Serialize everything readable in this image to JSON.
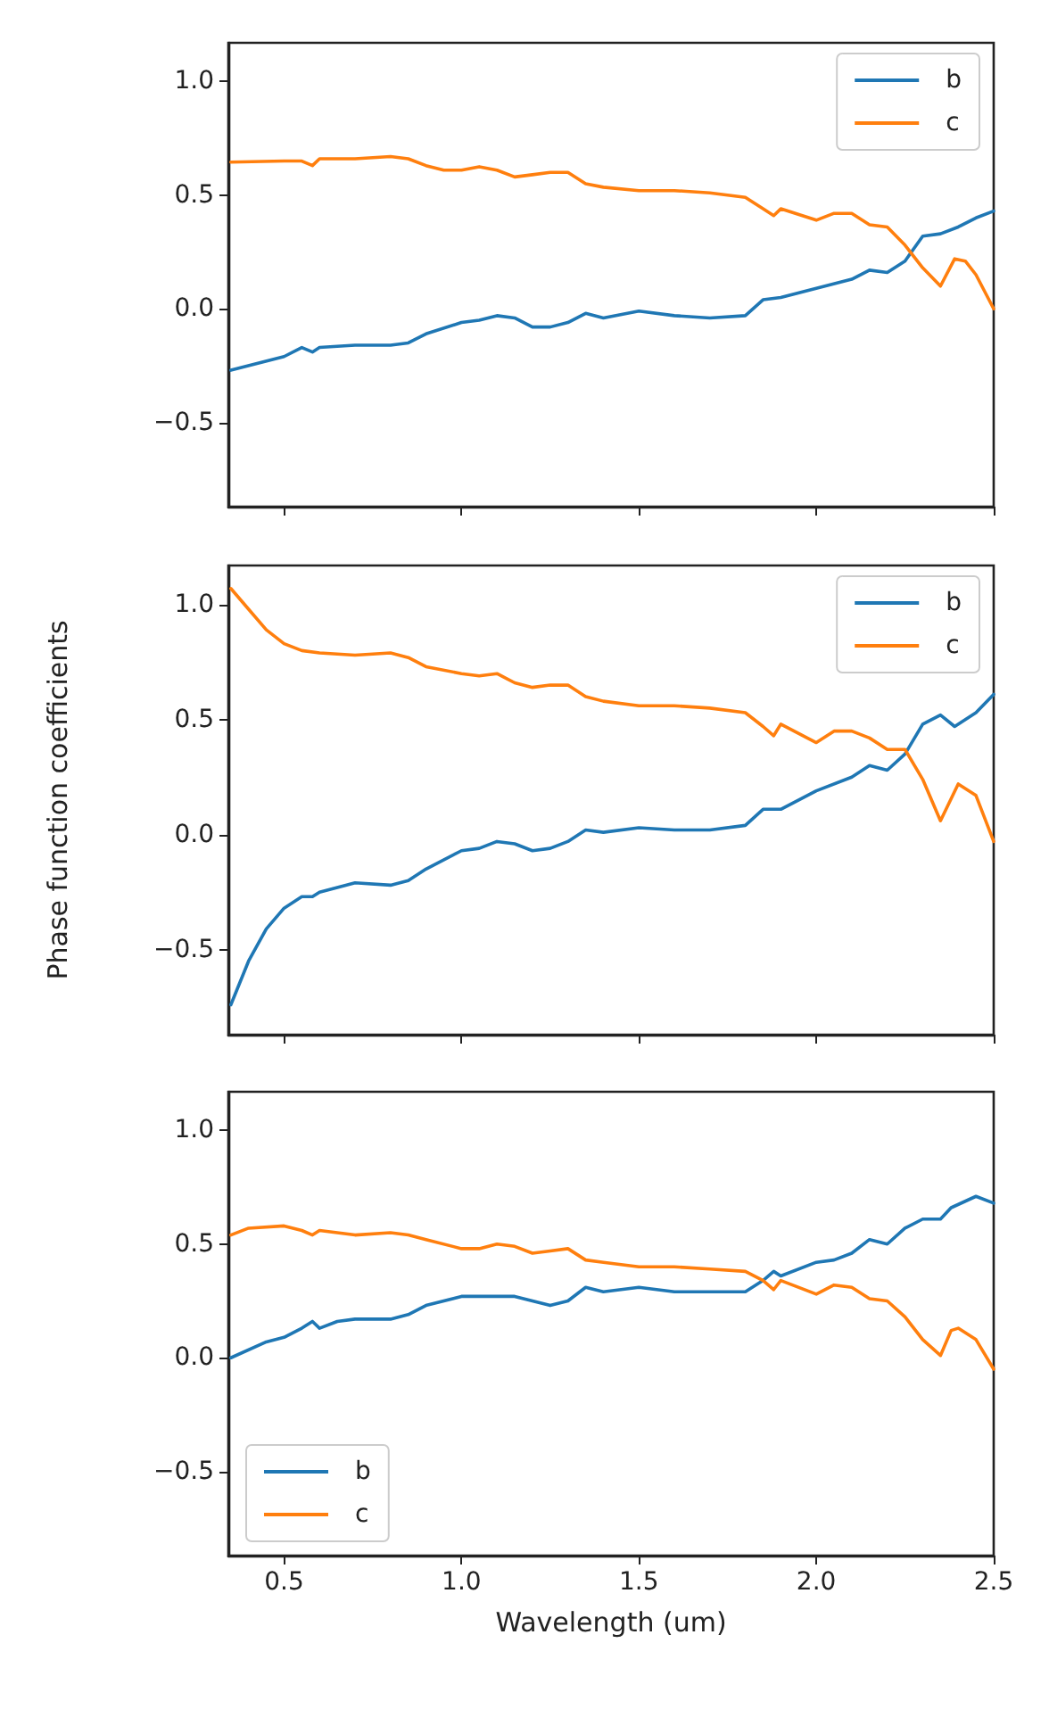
{
  "chart_data": [
    {
      "type": "line",
      "xlim": [
        0.343,
        2.5
      ],
      "ylim": [
        -0.87,
        1.17
      ],
      "xticks": [
        {
          "value": 0.5,
          "label": null
        },
        {
          "value": 1,
          "label": null
        },
        {
          "value": 1.5,
          "label": null
        },
        {
          "value": 2,
          "label": null
        },
        {
          "value": 2.5,
          "label": null
        }
      ],
      "yticks": [
        {
          "value": -0.5,
          "label": "−0.5"
        },
        {
          "value": 0,
          "label": "0.0"
        },
        {
          "value": 0.5,
          "label": "0.5"
        },
        {
          "value": 1.0,
          "label": "1.0"
        }
      ],
      "tick_labels": "y",
      "grid": false,
      "legend": "top right",
      "marker": "none",
      "line_style": "solid",
      "series": [
        {
          "name": "b",
          "color": "#1f77b4",
          "x": [
            0.35,
            0.5,
            0.55,
            0.58,
            0.6,
            0.7,
            0.8,
            0.85,
            0.9,
            1.0,
            1.05,
            1.1,
            1.15,
            1.2,
            1.25,
            1.3,
            1.35,
            1.4,
            1.5,
            1.6,
            1.7,
            1.8,
            1.85,
            1.9,
            2.0,
            2.1,
            2.15,
            2.2,
            2.25,
            2.3,
            2.35,
            2.4,
            2.45,
            2.5
          ],
          "values": [
            -0.27,
            -0.21,
            -0.17,
            -0.19,
            -0.17,
            -0.16,
            -0.16,
            -0.15,
            -0.11,
            -0.06,
            -0.05,
            -0.03,
            -0.04,
            -0.08,
            -0.08,
            -0.06,
            -0.02,
            -0.04,
            -0.01,
            -0.03,
            -0.04,
            -0.03,
            0.04,
            0.05,
            0.09,
            0.13,
            0.17,
            0.16,
            0.21,
            0.32,
            0.33,
            0.36,
            0.4,
            0.43
          ]
        },
        {
          "name": "c",
          "color": "#ff7f0e",
          "x": [
            0.35,
            0.5,
            0.55,
            0.58,
            0.6,
            0.7,
            0.8,
            0.85,
            0.9,
            0.95,
            1.0,
            1.05,
            1.1,
            1.15,
            1.2,
            1.25,
            1.3,
            1.35,
            1.4,
            1.5,
            1.6,
            1.7,
            1.8,
            1.85,
            1.88,
            1.9,
            2.0,
            2.05,
            2.1,
            2.15,
            2.2,
            2.25,
            2.3,
            2.35,
            2.39,
            2.42,
            2.45,
            2.5
          ],
          "values": [
            0.645,
            0.65,
            0.65,
            0.63,
            0.66,
            0.66,
            0.67,
            0.66,
            0.63,
            0.61,
            0.61,
            0.625,
            0.61,
            0.58,
            0.59,
            0.6,
            0.6,
            0.55,
            0.535,
            0.52,
            0.52,
            0.51,
            0.49,
            0.44,
            0.41,
            0.44,
            0.39,
            0.42,
            0.42,
            0.37,
            0.36,
            0.28,
            0.18,
            0.1,
            0.22,
            0.21,
            0.15,
            0.0
          ]
        }
      ]
    },
    {
      "type": "line",
      "ylabel": "Phase function coefficients",
      "xlim": [
        0.343,
        2.5
      ],
      "ylim": [
        -0.87,
        1.17
      ],
      "xticks": [
        {
          "value": 0.5,
          "label": null
        },
        {
          "value": 1,
          "label": null
        },
        {
          "value": 1.5,
          "label": null
        },
        {
          "value": 2,
          "label": null
        },
        {
          "value": 2.5,
          "label": null
        }
      ],
      "yticks": [
        {
          "value": -0.5,
          "label": "−0.5"
        },
        {
          "value": 0,
          "label": "0.0"
        },
        {
          "value": 0.5,
          "label": "0.5"
        },
        {
          "value": 1.0,
          "label": "1.0"
        }
      ],
      "tick_labels": "y",
      "grid": false,
      "legend": "top right",
      "marker": "none",
      "line_style": "solid",
      "series": [
        {
          "name": "b",
          "color": "#1f77b4",
          "x": [
            0.35,
            0.4,
            0.45,
            0.5,
            0.55,
            0.58,
            0.6,
            0.7,
            0.8,
            0.85,
            0.9,
            1.0,
            1.05,
            1.1,
            1.15,
            1.2,
            1.25,
            1.3,
            1.35,
            1.4,
            1.5,
            1.6,
            1.7,
            1.8,
            1.85,
            1.9,
            2.0,
            2.1,
            2.15,
            2.2,
            2.25,
            2.3,
            2.35,
            2.39,
            2.45,
            2.5
          ],
          "values": [
            -0.74,
            -0.55,
            -0.41,
            -0.32,
            -0.27,
            -0.27,
            -0.25,
            -0.21,
            -0.22,
            -0.2,
            -0.15,
            -0.07,
            -0.06,
            -0.03,
            -0.04,
            -0.07,
            -0.06,
            -0.03,
            0.02,
            0.01,
            0.03,
            0.02,
            0.02,
            0.04,
            0.11,
            0.11,
            0.19,
            0.25,
            0.3,
            0.28,
            0.35,
            0.48,
            0.52,
            0.47,
            0.53,
            0.61
          ]
        },
        {
          "name": "c",
          "color": "#ff7f0e",
          "x": [
            0.35,
            0.4,
            0.45,
            0.5,
            0.55,
            0.6,
            0.7,
            0.8,
            0.85,
            0.9,
            1.0,
            1.05,
            1.1,
            1.15,
            1.2,
            1.25,
            1.3,
            1.35,
            1.4,
            1.5,
            1.6,
            1.7,
            1.8,
            1.85,
            1.88,
            1.9,
            2.0,
            2.05,
            2.1,
            2.15,
            2.2,
            2.25,
            2.3,
            2.35,
            2.4,
            2.45,
            2.5
          ],
          "values": [
            1.07,
            0.98,
            0.89,
            0.83,
            0.8,
            0.79,
            0.78,
            0.79,
            0.77,
            0.73,
            0.7,
            0.69,
            0.7,
            0.66,
            0.64,
            0.65,
            0.65,
            0.6,
            0.58,
            0.56,
            0.56,
            0.55,
            0.53,
            0.47,
            0.43,
            0.48,
            0.4,
            0.45,
            0.45,
            0.42,
            0.37,
            0.37,
            0.24,
            0.06,
            0.22,
            0.17,
            -0.03
          ]
        }
      ]
    },
    {
      "type": "line",
      "xlabel": "Wavelength (um)",
      "xlim": [
        0.343,
        2.5
      ],
      "ylim": [
        -0.87,
        1.17
      ],
      "xticks": [
        {
          "value": 0.5,
          "label": "0.5"
        },
        {
          "value": 1,
          "label": "1.0"
        },
        {
          "value": 1.5,
          "label": "1.5"
        },
        {
          "value": 2,
          "label": "2.0"
        },
        {
          "value": 2.5,
          "label": "2.5"
        }
      ],
      "yticks": [
        {
          "value": -0.5,
          "label": "−0.5"
        },
        {
          "value": 0,
          "label": "0.0"
        },
        {
          "value": 0.5,
          "label": "0.5"
        },
        {
          "value": 1.0,
          "label": "1.0"
        }
      ],
      "grid": false,
      "legend": "bottom left",
      "marker": "none",
      "line_style": "solid",
      "series": [
        {
          "name": "b",
          "color": "#1f77b4",
          "x": [
            0.35,
            0.45,
            0.5,
            0.55,
            0.58,
            0.6,
            0.65,
            0.7,
            0.8,
            0.85,
            0.9,
            1.0,
            1.05,
            1.1,
            1.15,
            1.2,
            1.25,
            1.3,
            1.35,
            1.4,
            1.5,
            1.6,
            1.7,
            1.8,
            1.85,
            1.88,
            1.9,
            2.0,
            2.05,
            2.1,
            2.15,
            2.2,
            2.25,
            2.3,
            2.35,
            2.38,
            2.45,
            2.5
          ],
          "values": [
            0.0,
            0.07,
            0.09,
            0.13,
            0.16,
            0.13,
            0.16,
            0.17,
            0.17,
            0.19,
            0.23,
            0.27,
            0.27,
            0.27,
            0.27,
            0.25,
            0.23,
            0.25,
            0.31,
            0.29,
            0.31,
            0.29,
            0.29,
            0.29,
            0.34,
            0.38,
            0.36,
            0.42,
            0.43,
            0.46,
            0.52,
            0.5,
            0.57,
            0.61,
            0.61,
            0.66,
            0.71,
            0.68
          ]
        },
        {
          "name": "c",
          "color": "#ff7f0e",
          "x": [
            0.35,
            0.4,
            0.5,
            0.55,
            0.58,
            0.6,
            0.7,
            0.8,
            0.85,
            0.9,
            1.0,
            1.05,
            1.1,
            1.15,
            1.2,
            1.25,
            1.3,
            1.35,
            1.4,
            1.5,
            1.6,
            1.7,
            1.8,
            1.85,
            1.88,
            1.9,
            2.0,
            2.05,
            2.1,
            2.15,
            2.2,
            2.25,
            2.3,
            2.35,
            2.38,
            2.4,
            2.45,
            2.5
          ],
          "values": [
            0.54,
            0.57,
            0.58,
            0.56,
            0.54,
            0.56,
            0.54,
            0.55,
            0.54,
            0.52,
            0.48,
            0.48,
            0.5,
            0.49,
            0.46,
            0.47,
            0.48,
            0.43,
            0.42,
            0.4,
            0.4,
            0.39,
            0.38,
            0.34,
            0.3,
            0.34,
            0.28,
            0.32,
            0.31,
            0.26,
            0.25,
            0.18,
            0.08,
            0.01,
            0.12,
            0.13,
            0.08,
            -0.05
          ]
        }
      ]
    }
  ]
}
